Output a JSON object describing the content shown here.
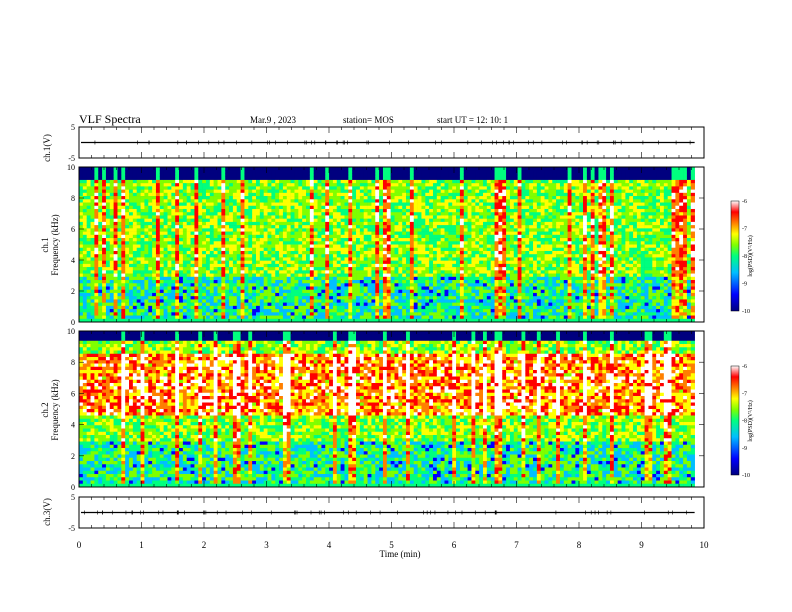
{
  "header": {
    "title": "VLF Spectra",
    "date": "Mar.9 , 2023",
    "station": "station= MOS",
    "start_ut": "start UT = 12: 10: 1"
  },
  "chart_data": {
    "type": "heatmap",
    "x_label": "Time (min)",
    "x_range": [
      0,
      10
    ],
    "x_ticks": [
      "0",
      "1",
      "2",
      "3",
      "4",
      "5",
      "6",
      "7",
      "8",
      "9",
      "10"
    ],
    "panels": [
      {
        "id": "ch1-waveform",
        "ylabel": "ch.1(V)",
        "ylim": [
          -5,
          5
        ],
        "yticks": [
          "5",
          "-5"
        ],
        "level": 0
      },
      {
        "id": "ch1-spectrogram",
        "ylabel_top": "ch.1",
        "ylabel": "Frequency (kHz)",
        "ylim": [
          0,
          10
        ],
        "yticks": [
          "0",
          "2",
          "4",
          "6",
          "8",
          "10"
        ],
        "colorbar": {
          "label": "log(PSD)(V²/Hz)",
          "range": [
            -10,
            -6
          ],
          "ticks": [
            "-6",
            "-7",
            "-8",
            "-9",
            "-10"
          ]
        },
        "active_band_khz": [
          0.3,
          9.2
        ]
      },
      {
        "id": "ch2-spectrogram",
        "ylabel_top": "ch.2",
        "ylabel": "Frequency (kHz)",
        "ylim": [
          0,
          10
        ],
        "yticks": [
          "0",
          "2",
          "4",
          "6",
          "8",
          "10"
        ],
        "colorbar": {
          "label": "log(PSD)(V²/Hz)",
          "range": [
            -10,
            -6
          ],
          "ticks": [
            "-6",
            "-7",
            "-8",
            "-9",
            "-10"
          ]
        },
        "active_band_khz": [
          0.3,
          9.4
        ]
      },
      {
        "id": "ch3-waveform",
        "ylabel": "ch.3(V)",
        "ylim": [
          -5,
          5
        ],
        "yticks": [
          "5",
          "-5"
        ],
        "level": 0
      }
    ],
    "x_data_end_min": 9.85
  },
  "colors": {
    "scale": [
      "#00007f",
      "#0000ff",
      "#00bfff",
      "#00ff7f",
      "#7fff00",
      "#ffff00",
      "#ff7f00",
      "#ff0000",
      "#ffffff"
    ]
  }
}
